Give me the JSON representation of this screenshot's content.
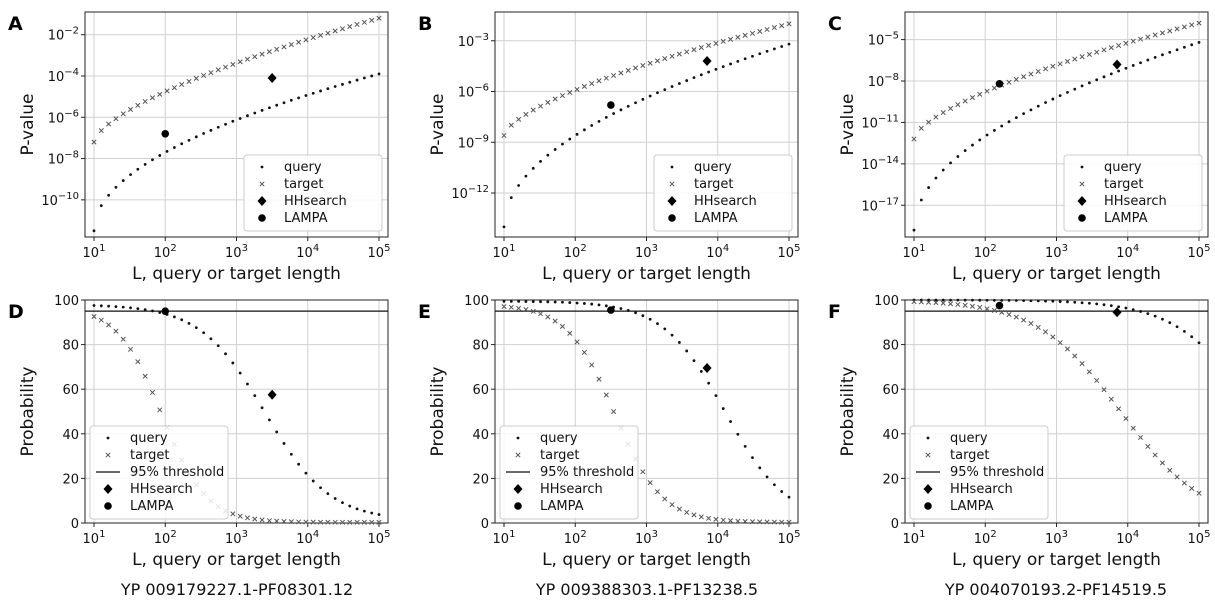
{
  "captions": [
    "YP 009179227.1-PF08301.12",
    "YP 009388303.1-PF13238.5",
    "YP 004070193.2-PF14519.5"
  ],
  "chart_data": [
    {
      "panel": "A",
      "type": "scatter",
      "yscale": "log",
      "xscale": "log",
      "xlabel": "L, query or target length",
      "ylabel": "P-value",
      "xlim": [
        1,
        5
      ],
      "ylim": [
        -11.8,
        -0.9
      ],
      "yticks": [
        -10,
        -8,
        -6,
        -4,
        -2
      ],
      "grid": true,
      "legend": "lower-right",
      "series": [
        {
          "name": "query",
          "marker": "dot",
          "curve": {
            "x0": 1,
            "x1": 5,
            "y0": -11.5,
            "y1": -3.9,
            "pow": 0.5
          }
        },
        {
          "name": "target",
          "marker": "x",
          "curve": {
            "x0": 1,
            "x1": 5,
            "y0": -7.2,
            "y1": -1.2,
            "pow": 0.65
          }
        },
        {
          "name": "HHsearch",
          "marker": "diamond",
          "points": [
            [
              3.5,
              -4.1
            ]
          ]
        },
        {
          "name": "LAMPA",
          "marker": "circle",
          "points": [
            [
              2.0,
              -6.8
            ]
          ]
        }
      ]
    },
    {
      "panel": "B",
      "type": "scatter",
      "yscale": "log",
      "xscale": "log",
      "xlabel": "L, query or target length",
      "ylabel": "P-value",
      "xlim": [
        1,
        5
      ],
      "ylim": [
        -14.6,
        -1.3
      ],
      "yticks": [
        -12,
        -9,
        -6,
        -3
      ],
      "grid": true,
      "legend": "lower-right",
      "series": [
        {
          "name": "query",
          "marker": "dot",
          "curve": {
            "x0": 1,
            "x1": 5,
            "y0": -14.0,
            "y1": -3.2,
            "pow": 0.5
          }
        },
        {
          "name": "target",
          "marker": "x",
          "curve": {
            "x0": 1,
            "x1": 5,
            "y0": -8.6,
            "y1": -2.0,
            "pow": 0.65
          }
        },
        {
          "name": "HHsearch",
          "marker": "diamond",
          "points": [
            [
              3.85,
              -4.2
            ]
          ]
        },
        {
          "name": "LAMPA",
          "marker": "circle",
          "points": [
            [
              2.5,
              -6.8
            ]
          ]
        }
      ]
    },
    {
      "panel": "C",
      "type": "scatter",
      "yscale": "log",
      "xscale": "log",
      "xlabel": "L, query or target length",
      "ylabel": "P-value",
      "xlim": [
        1,
        5
      ],
      "ylim": [
        -19.3,
        -3.0
      ],
      "yticks": [
        -17,
        -14,
        -11,
        -8,
        -5
      ],
      "grid": true,
      "legend": "lower-right",
      "series": [
        {
          "name": "query",
          "marker": "dot",
          "curve": {
            "x0": 1,
            "x1": 5,
            "y0": -18.8,
            "y1": -5.2,
            "pow": 0.5
          }
        },
        {
          "name": "target",
          "marker": "x",
          "curve": {
            "x0": 1,
            "x1": 5,
            "y0": -12.2,
            "y1": -3.8,
            "pow": 0.65
          }
        },
        {
          "name": "HHsearch",
          "marker": "diamond",
          "points": [
            [
              3.85,
              -6.8
            ]
          ]
        },
        {
          "name": "LAMPA",
          "marker": "circle",
          "points": [
            [
              2.2,
              -8.2
            ]
          ]
        }
      ]
    },
    {
      "panel": "D",
      "type": "scatter",
      "xscale": "log",
      "xlabel": "L, query or target length",
      "ylabel": "Probability",
      "xlim": [
        1,
        5
      ],
      "ylim": [
        0,
        100
      ],
      "yticks": [
        0,
        20,
        40,
        60,
        80,
        100
      ],
      "grid": true,
      "legend": "lower-left",
      "threshold": 95,
      "series": [
        {
          "name": "query",
          "marker": "dot",
          "sigmoid": {
            "top": 98,
            "bottom": 1,
            "mid": 3.4,
            "k": 2.2
          }
        },
        {
          "name": "target",
          "marker": "x",
          "sigmoid": {
            "top": 97,
            "bottom": 0.3,
            "mid": 1.95,
            "k": 3.2
          }
        },
        {
          "name": "95% threshold",
          "marker": "line",
          "value": 95
        },
        {
          "name": "HHsearch",
          "marker": "diamond",
          "points": [
            [
              3.5,
              57.5
            ]
          ]
        },
        {
          "name": "LAMPA",
          "marker": "circle",
          "points": [
            [
              2.0,
              95
            ]
          ]
        }
      ]
    },
    {
      "panel": "E",
      "type": "scatter",
      "xscale": "log",
      "xlabel": "L, query or target length",
      "ylabel": "Probability",
      "xlim": [
        1,
        5
      ],
      "ylim": [
        0,
        100
      ],
      "yticks": [
        0,
        20,
        40,
        60,
        80,
        100
      ],
      "grid": true,
      "legend": "lower-left",
      "threshold": 95,
      "series": [
        {
          "name": "query",
          "marker": "dot",
          "sigmoid": {
            "top": 99.5,
            "bottom": 0.5,
            "mid": 4.1,
            "k": 2.3
          }
        },
        {
          "name": "target",
          "marker": "x",
          "sigmoid": {
            "top": 98,
            "bottom": 0.3,
            "mid": 2.55,
            "k": 3.0
          }
        },
        {
          "name": "95% threshold",
          "marker": "line",
          "value": 95
        },
        {
          "name": "HHsearch",
          "marker": "diamond",
          "points": [
            [
              3.85,
              69.5
            ]
          ]
        },
        {
          "name": "LAMPA",
          "marker": "circle",
          "points": [
            [
              2.5,
              95.5
            ]
          ]
        }
      ]
    },
    {
      "panel": "F",
      "type": "scatter",
      "xscale": "log",
      "xlabel": "L, query or target length",
      "ylabel": "Probability",
      "xlim": [
        1,
        5
      ],
      "ylim": [
        0,
        100
      ],
      "yticks": [
        0,
        20,
        40,
        60,
        80,
        100
      ],
      "grid": true,
      "legend": "lower-left",
      "threshold": 95,
      "series": [
        {
          "name": "query",
          "marker": "dot",
          "sigmoid": {
            "top": 100,
            "bottom": 0,
            "mid": 5.8,
            "k": 1.8
          }
        },
        {
          "name": "target",
          "marker": "x",
          "sigmoid": {
            "top": 100,
            "bottom": 0,
            "mid": 3.9,
            "k": 1.7
          }
        },
        {
          "name": "95% threshold",
          "marker": "line",
          "value": 95
        },
        {
          "name": "HHsearch",
          "marker": "diamond",
          "points": [
            [
              3.85,
              94.5
            ]
          ]
        },
        {
          "name": "LAMPA",
          "marker": "circle",
          "points": [
            [
              2.2,
              97.5
            ]
          ]
        }
      ]
    }
  ]
}
